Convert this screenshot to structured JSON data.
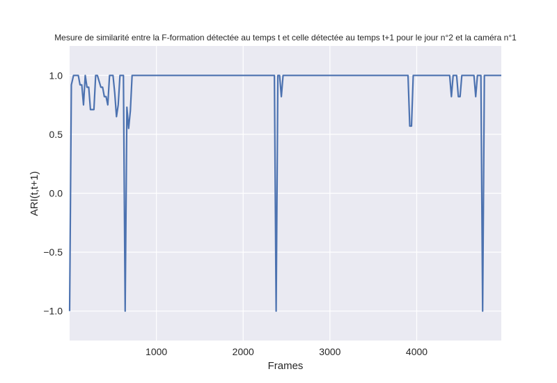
{
  "chart_data": {
    "type": "line",
    "title": "Mesure de similarité entre la F-formation détectée au temps t et celle détectée au temps t+1 pour le jour n°2 et la caméra n°1",
    "xlabel": "Frames",
    "ylabel": "ARI(t,t+1)",
    "xlim": [
      0,
      4975
    ],
    "ylim": [
      -1.25,
      1.25
    ],
    "x_ticks": [
      1000,
      2000,
      3000,
      4000
    ],
    "x_tick_labels": [
      "1000",
      "2000",
      "3000",
      "4000"
    ],
    "y_ticks": [
      1.0,
      0.5,
      0.0,
      -0.5,
      -1.0
    ],
    "y_tick_labels": [
      "1.0",
      "0.5",
      "0.0",
      "−0.5",
      "−1.0"
    ],
    "grid": true,
    "colors": {
      "line": "#4c72b0",
      "plot_background": "#eaeaf2",
      "grid": "#ffffff"
    },
    "series": [
      {
        "x": [
          0,
          20,
          45,
          60,
          80,
          100,
          120,
          140,
          160,
          180,
          200,
          220,
          240,
          260,
          280,
          300,
          320,
          340,
          360,
          380,
          400,
          420,
          440,
          460,
          480,
          500,
          520,
          540,
          560,
          580,
          600,
          620,
          640,
          660,
          680,
          700,
          720,
          740,
          760,
          780,
          800,
          1000,
          1500,
          2000,
          2300,
          2340,
          2360,
          2380,
          2400,
          2420,
          2440,
          2460,
          2480,
          2500,
          3000,
          3500,
          3800,
          3900,
          3920,
          3940,
          3960,
          3980,
          4000,
          4200,
          4300,
          4350,
          4380,
          4400,
          4420,
          4440,
          4460,
          4480,
          4500,
          4520,
          4540,
          4560,
          4580,
          4600,
          4620,
          4640,
          4660,
          4680,
          4700,
          4720,
          4740,
          4760,
          4780,
          4800,
          4850,
          4900,
          4950,
          4975
        ],
        "values": [
          -1.0,
          0.92,
          1.0,
          1.0,
          1.0,
          1.0,
          0.92,
          0.92,
          0.75,
          1.0,
          0.9,
          0.9,
          0.71,
          0.71,
          0.71,
          1.0,
          1.0,
          0.95,
          0.9,
          0.9,
          0.82,
          0.82,
          0.75,
          1.0,
          1.0,
          1.0,
          0.85,
          0.65,
          0.75,
          1.0,
          1.0,
          1.0,
          -1.0,
          0.73,
          0.55,
          0.7,
          1.0,
          1.0,
          1.0,
          1.0,
          1.0,
          1.0,
          1.0,
          1.0,
          1.0,
          1.0,
          1.0,
          -1.0,
          1.0,
          1.0,
          0.82,
          1.0,
          1.0,
          1.0,
          1.0,
          1.0,
          1.0,
          1.0,
          0.57,
          0.57,
          1.0,
          1.0,
          1.0,
          1.0,
          1.0,
          1.0,
          1.0,
          0.82,
          1.0,
          1.0,
          1.0,
          0.82,
          0.82,
          1.0,
          1.0,
          1.0,
          1.0,
          1.0,
          1.0,
          1.0,
          1.0,
          0.82,
          1.0,
          1.0,
          1.0,
          -1.0,
          1.0,
          1.0,
          1.0,
          1.0,
          1.0,
          1.0
        ]
      }
    ]
  }
}
